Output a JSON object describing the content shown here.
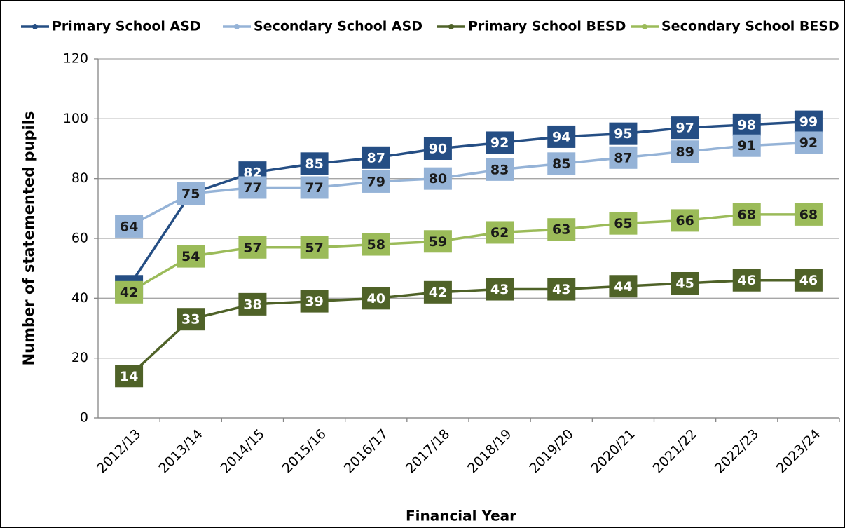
{
  "chart_data": {
    "type": "line",
    "x_label": "Financial Year",
    "y_label": "Number of statemented pupils",
    "categories": [
      "2012/13",
      "2013/14",
      "2014/15",
      "2015/16",
      "2016/17",
      "2017/18",
      "2018/19",
      "2019/20",
      "2020/21",
      "2021/22",
      "2022/23",
      "2023/24"
    ],
    "series": [
      {
        "name": "Primary School ASD",
        "color": "#254e84",
        "values": [
          44,
          75,
          82,
          85,
          87,
          90,
          92,
          94,
          95,
          97,
          98,
          99
        ]
      },
      {
        "name": "Secondary School ASD",
        "color": "#95b3d7",
        "values": [
          64,
          75,
          77,
          77,
          79,
          80,
          83,
          85,
          87,
          89,
          91,
          92
        ]
      },
      {
        "name": "Primary School BESD",
        "color": "#4f6228",
        "values": [
          14,
          33,
          38,
          39,
          40,
          42,
          43,
          43,
          44,
          45,
          46,
          46
        ]
      },
      {
        "name": "Secondary School BESD",
        "color": "#9bbb59",
        "values": [
          42,
          54,
          57,
          57,
          58,
          59,
          62,
          63,
          65,
          66,
          68,
          68
        ]
      }
    ],
    "ylim": [
      0,
      120
    ],
    "yticks": [
      0,
      20,
      40,
      60,
      80,
      100,
      120
    ],
    "grid": true,
    "legend": "top",
    "data_labels": true
  }
}
